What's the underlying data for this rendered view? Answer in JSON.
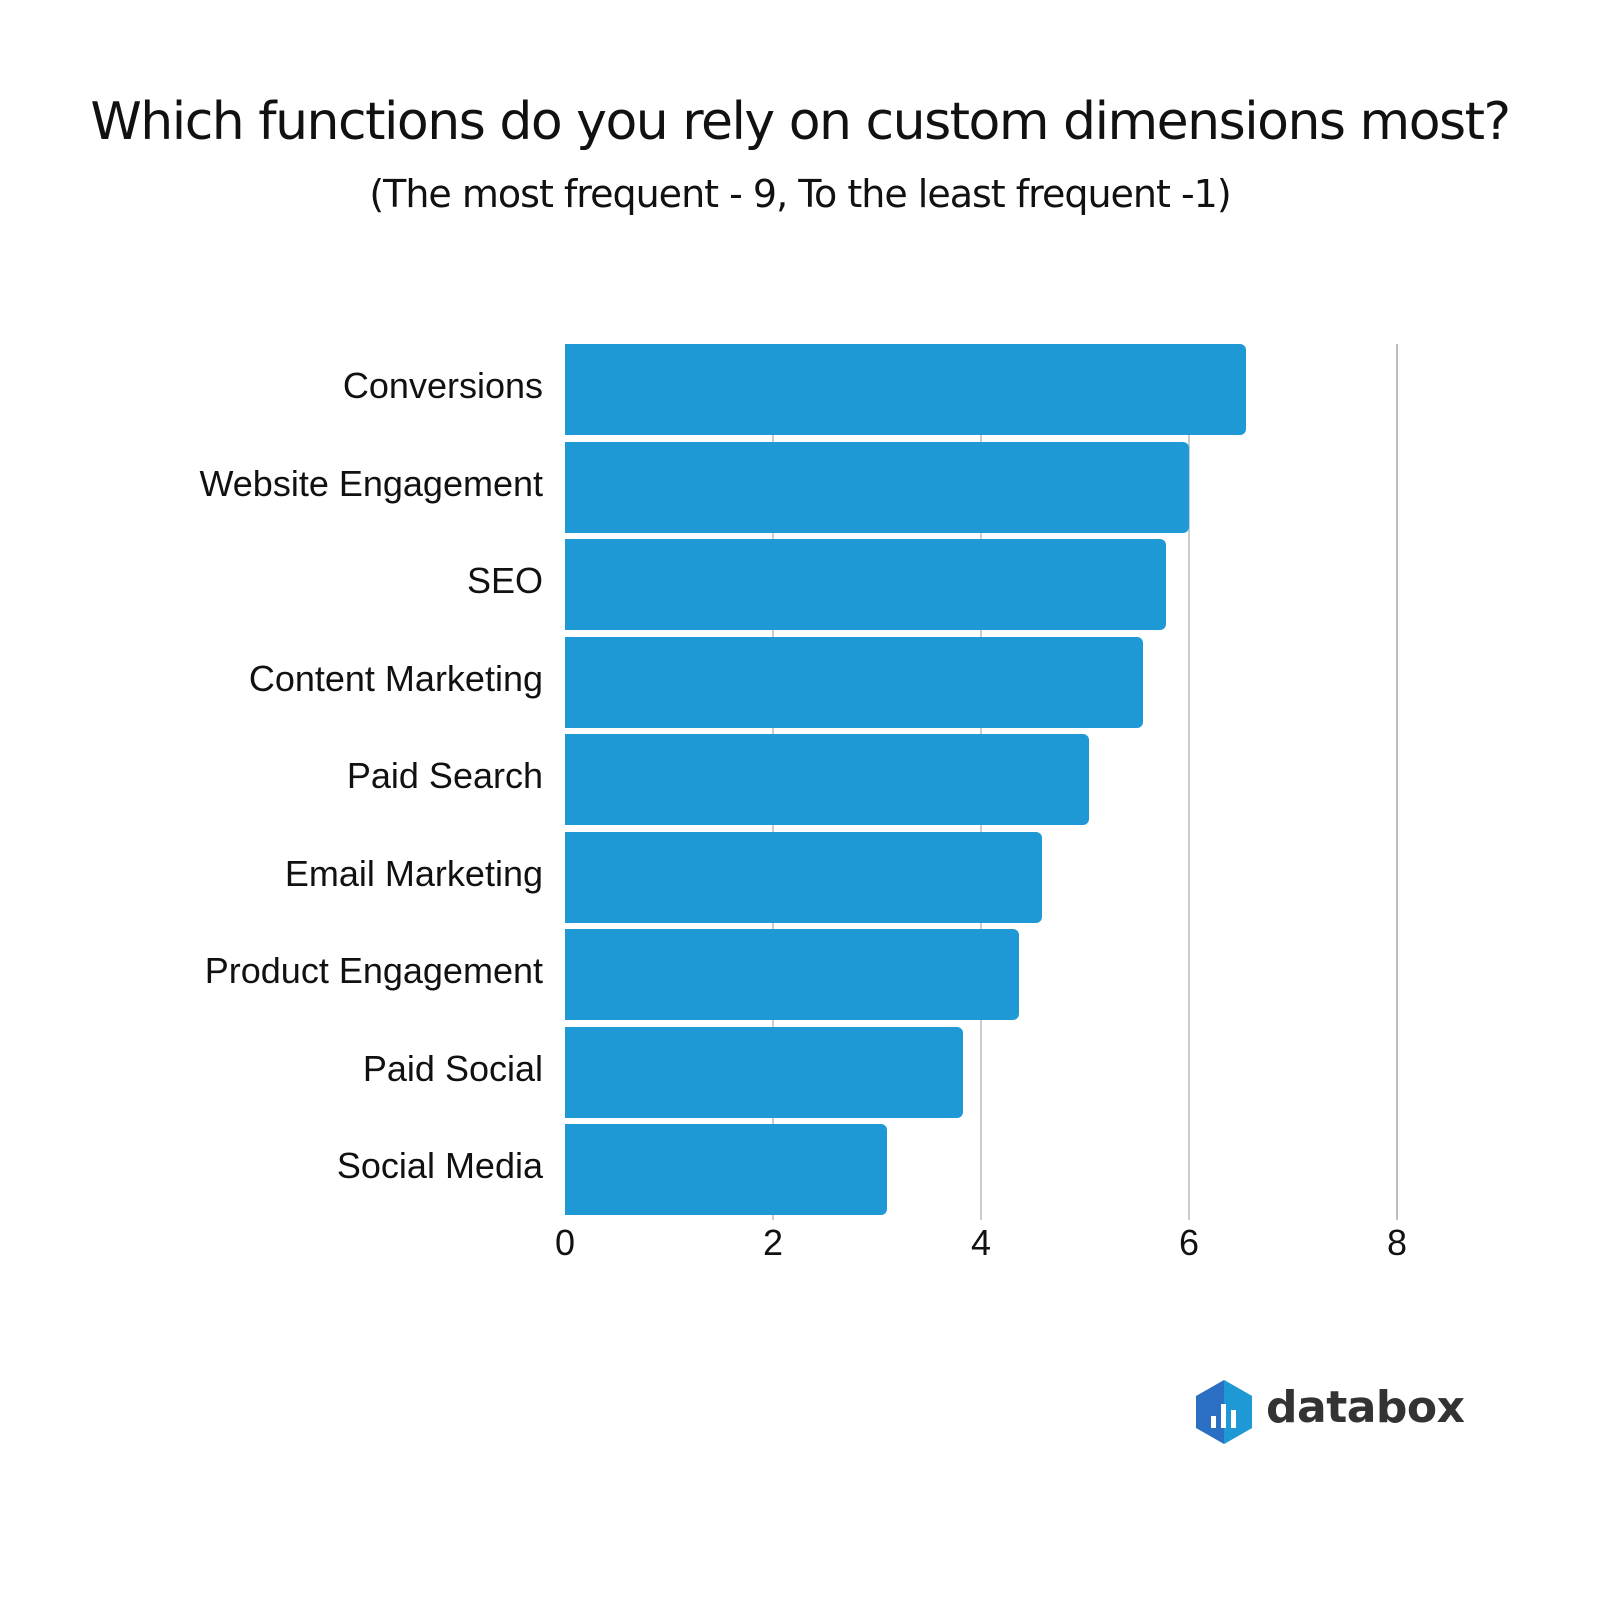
{
  "chart_data": {
    "type": "bar",
    "orientation": "horizontal",
    "title": "Which functions do you rely on custom dimensions most?",
    "subtitle": "(The most frequent - 9, To the least frequent -1)",
    "xlabel": "",
    "ylabel": "",
    "categories": [
      "Conversions",
      "Website Engagement",
      "SEO",
      "Content Marketing",
      "Paid Search",
      "Email Marketing",
      "Product Engagement",
      "Paid Social",
      "Social Media"
    ],
    "values": [
      6.55,
      6.0,
      5.78,
      5.56,
      5.04,
      4.59,
      4.37,
      3.83,
      3.1
    ],
    "xlim": [
      0,
      8
    ],
    "xticks": [
      "0",
      "2",
      "4",
      "6",
      "8"
    ],
    "grid": true,
    "legend": null,
    "bar_color": "#1f99d5"
  },
  "branding": {
    "logo_text": "databox",
    "logo_colors": [
      "#2a6fc1",
      "#1f99d5"
    ]
  }
}
